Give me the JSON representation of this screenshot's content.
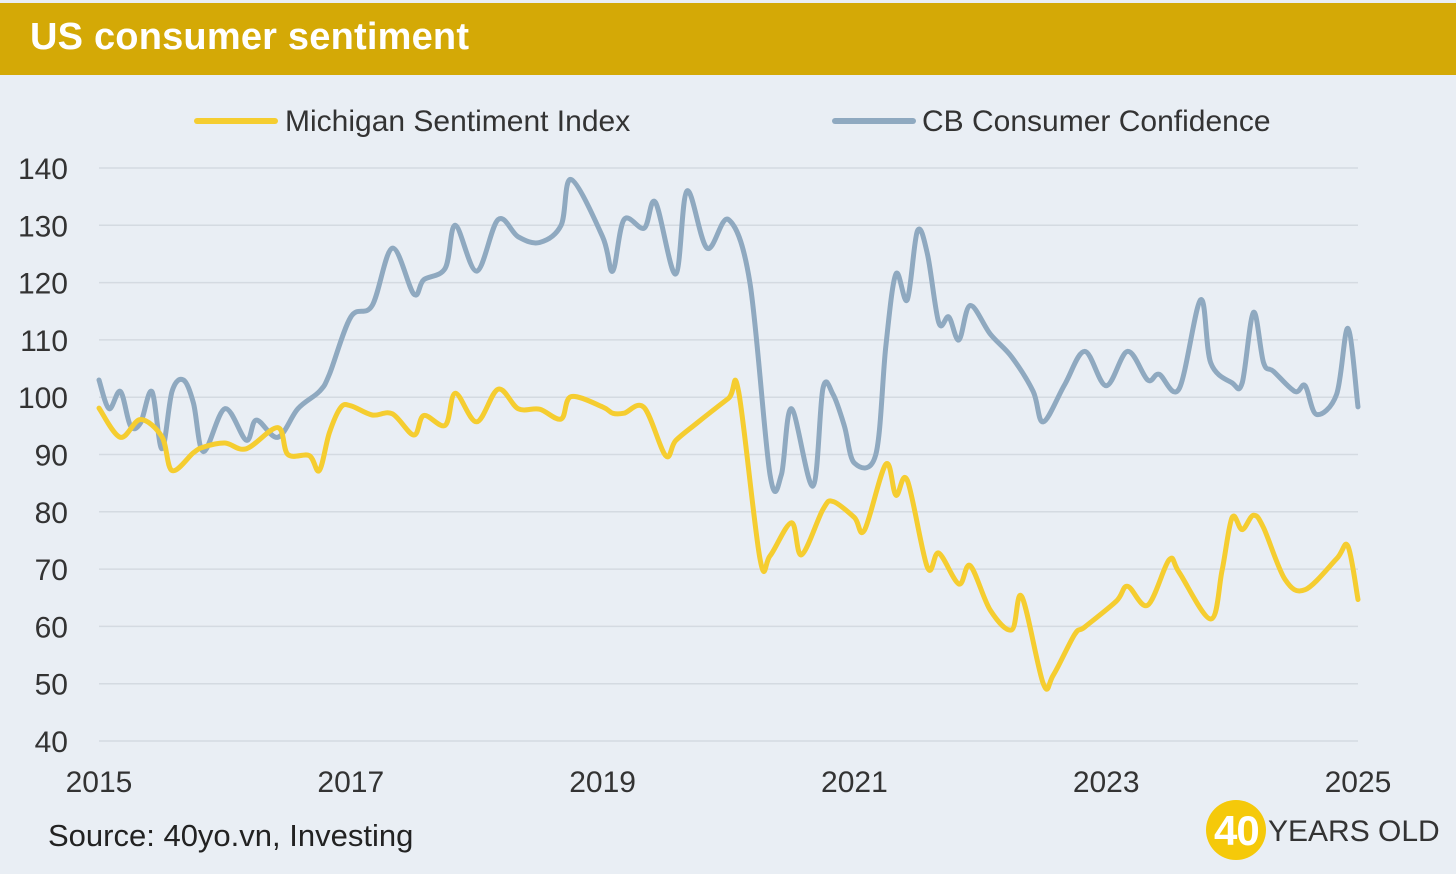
{
  "header": {
    "title": "US consumer sentiment"
  },
  "footer": {
    "source": "Source: 40yo.vn, Investing",
    "logo_number": "40",
    "logo_text": "YEARS OLD"
  },
  "colors": {
    "header_bg": "#d4a906",
    "michigan": "#f5cd30",
    "cb": "#8fa9c0",
    "background": "#e9eef4"
  },
  "chart_data": {
    "type": "line",
    "title": "US consumer sentiment",
    "xlabel": "",
    "ylabel": "",
    "xlim": [
      2015,
      2025
    ],
    "ylim": [
      40,
      140
    ],
    "yticks": [
      40,
      50,
      60,
      70,
      80,
      90,
      100,
      110,
      120,
      130,
      140
    ],
    "xticks": [
      2015,
      2017,
      2019,
      2021,
      2023,
      2025
    ],
    "xtick_labels": [
      "2015",
      "2017",
      "2019",
      "2021",
      "2023",
      "2025"
    ],
    "grid": "horizontal",
    "legend": {
      "position": "top-center"
    },
    "series": [
      {
        "name": "Michigan Sentiment Index",
        "color": "#f5cd30",
        "x": [
          2015.0,
          2015.17,
          2015.33,
          2015.5,
          2015.58,
          2015.75,
          2015.83,
          2016.0,
          2016.17,
          2016.42,
          2016.5,
          2016.67,
          2016.75,
          2016.83,
          2016.92,
          2017.0,
          2017.17,
          2017.33,
          2017.5,
          2017.58,
          2017.75,
          2017.83,
          2018.0,
          2018.17,
          2018.33,
          2018.5,
          2018.67,
          2018.75,
          2019.0,
          2019.08,
          2019.17,
          2019.33,
          2019.5,
          2019.58,
          2019.75,
          2020.0,
          2020.08,
          2020.25,
          2020.33,
          2020.5,
          2020.58,
          2020.75,
          2020.83,
          2021.0,
          2021.08,
          2021.25,
          2021.33,
          2021.42,
          2021.58,
          2021.67,
          2021.83,
          2021.92,
          2022.08,
          2022.25,
          2022.33,
          2022.5,
          2022.58,
          2022.75,
          2022.83,
          2023.08,
          2023.17,
          2023.33,
          2023.5,
          2023.58,
          2023.83,
          2023.92,
          2024.0,
          2024.08,
          2024.17,
          2024.25,
          2024.42,
          2024.58,
          2024.83,
          2024.92,
          2025.0
        ],
        "values": [
          98.1,
          93.0,
          96.1,
          93.1,
          87.2,
          90.3,
          91.3,
          92.0,
          91.0,
          94.7,
          90.0,
          89.8,
          87.2,
          93.8,
          98.2,
          98.5,
          96.9,
          97.1,
          93.4,
          96.8,
          95.1,
          100.7,
          95.7,
          101.4,
          98.0,
          97.9,
          96.2,
          100.1,
          98.3,
          97.2,
          97.2,
          98.2,
          89.8,
          92.4,
          95.5,
          99.8,
          101.0,
          71.8,
          72.3,
          78.1,
          72.5,
          80.4,
          81.8,
          79.0,
          76.8,
          88.3,
          82.9,
          85.5,
          70.3,
          72.8,
          67.4,
          70.6,
          62.8,
          59.4,
          65.2,
          50.0,
          51.5,
          58.6,
          59.9,
          64.4,
          67.0,
          63.7,
          71.6,
          69.4,
          61.3,
          69.7,
          79.0,
          76.9,
          79.4,
          77.2,
          68.2,
          66.4,
          71.8,
          74.0,
          64.7
        ]
      },
      {
        "name": "CB Consumer Confidence",
        "color": "#8fa9c0",
        "x": [
          2015.0,
          2015.08,
          2015.17,
          2015.25,
          2015.33,
          2015.42,
          2015.5,
          2015.58,
          2015.67,
          2015.75,
          2015.83,
          2016.0,
          2016.17,
          2016.25,
          2016.42,
          2016.58,
          2016.75,
          2016.83,
          2017.0,
          2017.17,
          2017.33,
          2017.5,
          2017.58,
          2017.75,
          2017.83,
          2018.0,
          2018.17,
          2018.33,
          2018.5,
          2018.67,
          2018.75,
          2019.0,
          2019.08,
          2019.17,
          2019.33,
          2019.42,
          2019.58,
          2019.67,
          2019.83,
          2020.0,
          2020.17,
          2020.33,
          2020.42,
          2020.5,
          2020.67,
          2020.75,
          2020.83,
          2020.92,
          2021.0,
          2021.17,
          2021.25,
          2021.33,
          2021.42,
          2021.5,
          2021.58,
          2021.67,
          2021.75,
          2021.83,
          2021.92,
          2022.08,
          2022.25,
          2022.42,
          2022.5,
          2022.67,
          2022.83,
          2023.0,
          2023.17,
          2023.33,
          2023.42,
          2023.58,
          2023.75,
          2023.83,
          2024.0,
          2024.08,
          2024.17,
          2024.25,
          2024.33,
          2024.5,
          2024.58,
          2024.67,
          2024.83,
          2024.92,
          2025.0
        ],
        "values": [
          103.0,
          98.0,
          101.0,
          95.0,
          95.5,
          101.0,
          91.0,
          101.0,
          103.0,
          99.0,
          90.5,
          98.0,
          92.5,
          96.0,
          93.0,
          98.0,
          101.0,
          104.0,
          114.0,
          116.0,
          126.0,
          118.0,
          120.5,
          122.5,
          130.0,
          122.0,
          131.0,
          128.0,
          127.0,
          130.0,
          138.0,
          128.0,
          122.0,
          131.0,
          129.5,
          134.0,
          121.5,
          136.0,
          126.0,
          131.0,
          120.0,
          86.5,
          86.5,
          98.0,
          84.5,
          101.5,
          100.5,
          95.0,
          88.5,
          90.0,
          109.0,
          121.5,
          117.0,
          129.0,
          125.0,
          113.0,
          114.0,
          110.0,
          116.0,
          111.0,
          107.0,
          101.0,
          95.7,
          102.2,
          108.0,
          102.0,
          108.0,
          103.0,
          104.0,
          101.5,
          117.0,
          106.0,
          102.5,
          102.5,
          114.8,
          106.0,
          104.5,
          101.0,
          102.0,
          97.0,
          100.5,
          112.0,
          98.3
        ]
      }
    ]
  }
}
